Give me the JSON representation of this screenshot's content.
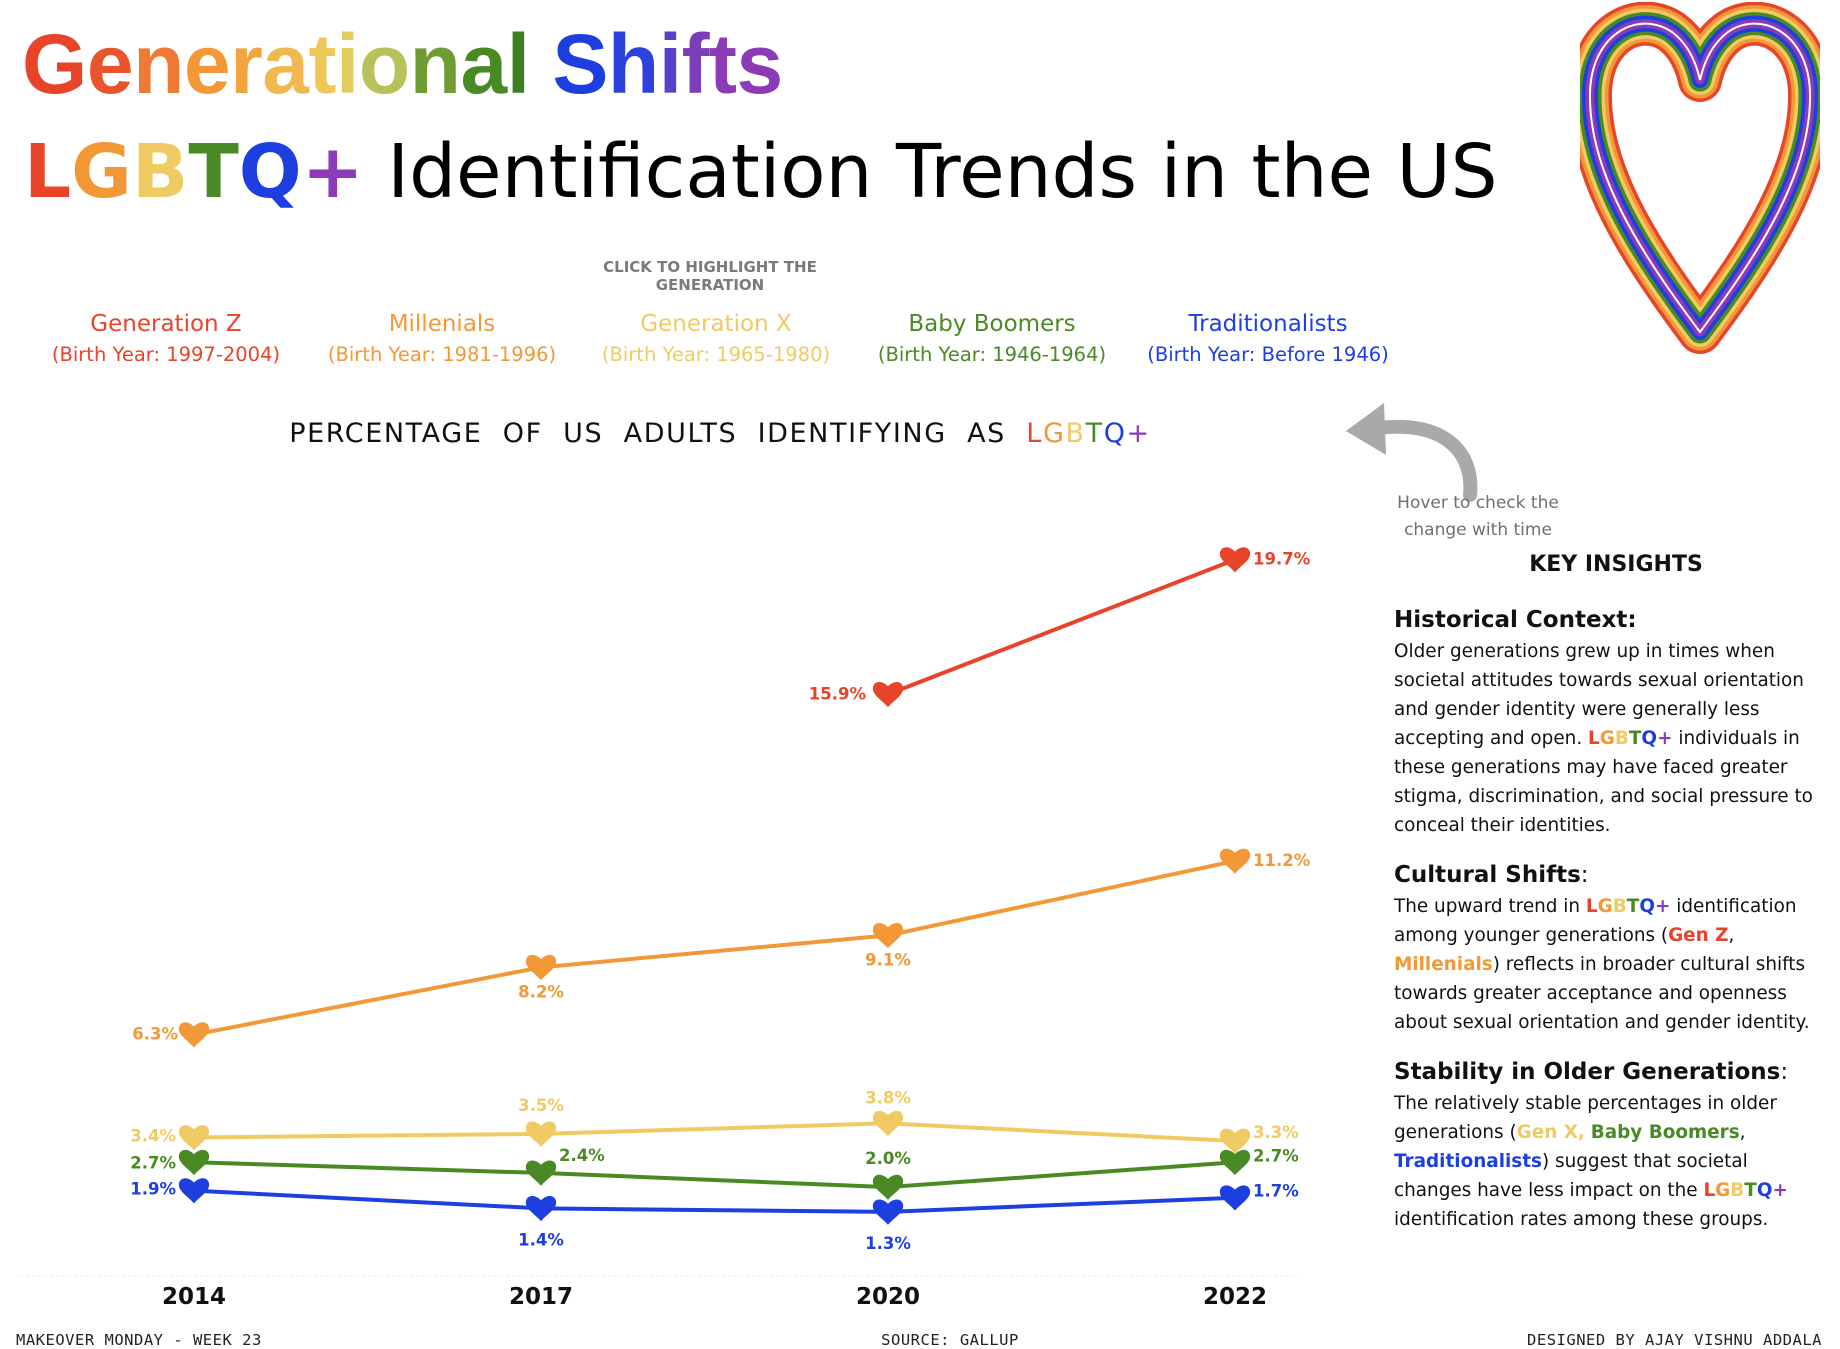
{
  "header": {
    "title_part1": "Generational",
    "title_part2": "Shifts",
    "subtitle_lgbtq": "LGBTQ+",
    "subtitle_rest": " Identification Trends in the US"
  },
  "click_hint": "CLICK TO HIGHLIGHT THE GENERATION",
  "generations": [
    {
      "name": "Generation Z",
      "years": "(Birth Year: 1997-2004)",
      "color": "#e8442a"
    },
    {
      "name": "Millenials",
      "years": "(Birth Year: 1981-1996)",
      "color": "#f29837"
    },
    {
      "name": "Generation X",
      "years": "(Birth Year: 1965-1980)",
      "color": "#f0ca62"
    },
    {
      "name": "Baby Boomers",
      "years": "(Birth Year: 1946-1964)",
      "color": "#4a8a25"
    },
    {
      "name": "Traditionalists",
      "years": "(Birth Year: Before 1946)",
      "color": "#1e3fe0"
    }
  ],
  "chart_title_prefix": "PERCENTAGE  OF  US  ADULTS  IDENTIFYING  AS  ",
  "chart_title_lgbtq": "LGBTQ+",
  "hover_hint": "Hover to check the change with time",
  "chart_data": {
    "type": "line",
    "title": "PERCENTAGE OF US ADULTS IDENTIFYING AS LGBTQ+",
    "x": [
      "2014",
      "2017",
      "2020",
      "2022"
    ],
    "ylim": [
      0,
      21
    ],
    "grid": false,
    "marker": "heart",
    "series": [
      {
        "name": "Generation Z",
        "color": "#e8442a",
        "values": [
          null,
          null,
          15.9,
          19.7
        ],
        "labels": [
          null,
          null,
          "15.9%",
          "19.7%"
        ]
      },
      {
        "name": "Millenials",
        "color": "#f29837",
        "values": [
          6.3,
          8.2,
          9.1,
          11.2
        ],
        "labels": [
          "6.3%",
          "8.2%",
          "9.1%",
          "11.2%"
        ]
      },
      {
        "name": "Generation X",
        "color": "#f0ca62",
        "values": [
          3.4,
          3.5,
          3.8,
          3.3
        ],
        "labels": [
          "3.4%",
          "3.5%",
          "3.8%",
          "3.3%"
        ]
      },
      {
        "name": "Baby Boomers",
        "color": "#4a8a25",
        "values": [
          2.7,
          2.4,
          2.0,
          2.7
        ],
        "labels": [
          "2.7%",
          "2.4%",
          "2.0%",
          "2.7%"
        ]
      },
      {
        "name": "Traditionalists",
        "color": "#1e3fe0",
        "values": [
          1.9,
          1.4,
          1.3,
          1.7
        ],
        "labels": [
          "1.9%",
          "1.4%",
          "1.3%",
          "1.7%"
        ]
      }
    ]
  },
  "insights": {
    "title": "KEY INSIGHTS",
    "historical_head": "Historical Context",
    "historical_body_1": "Older generations grew up in times when societal attitudes towards sexual orientation and gender identity were generally less accepting and open. ",
    "historical_body_2": " individuals in these generations may have faced greater stigma, discrimination, and social pressure to conceal their identities.",
    "cultural_head": "Cultural Shifts",
    "cultural_body_1": "The upward trend in ",
    "cultural_body_2": " identification among younger generations (",
    "cultural_genz": "Gen Z",
    "cultural_comma": ",",
    "cultural_millenials": "Millenials",
    "cultural_body_3": ") reflects in broader cultural shifts towards greater acceptance and openness about sexual orientation and gender identity.",
    "stability_head": "Stability in Older Generations",
    "stability_body_1": "The relatively stable percentages in older generations (",
    "stability_genx": "Gen X,",
    "stability_boomers": "Baby Boomers",
    "stability_comma": ",",
    "stability_trad": "Traditionalists",
    "stability_body_2": ") suggest that societal changes have less impact on the ",
    "stability_body_3": " identification rates among these groups.",
    "colon": ":"
  },
  "footer": {
    "left": "MAKEOVER MONDAY - WEEK 23",
    "center": "SOURCE: GALLUP",
    "right": "DESIGNED BY AJAY VISHNU ADDALA"
  },
  "rainbow": [
    "#e8442a",
    "#f29837",
    "#f0ca62",
    "#4a8a25",
    "#1e3fe0",
    "#8a3bb5"
  ]
}
